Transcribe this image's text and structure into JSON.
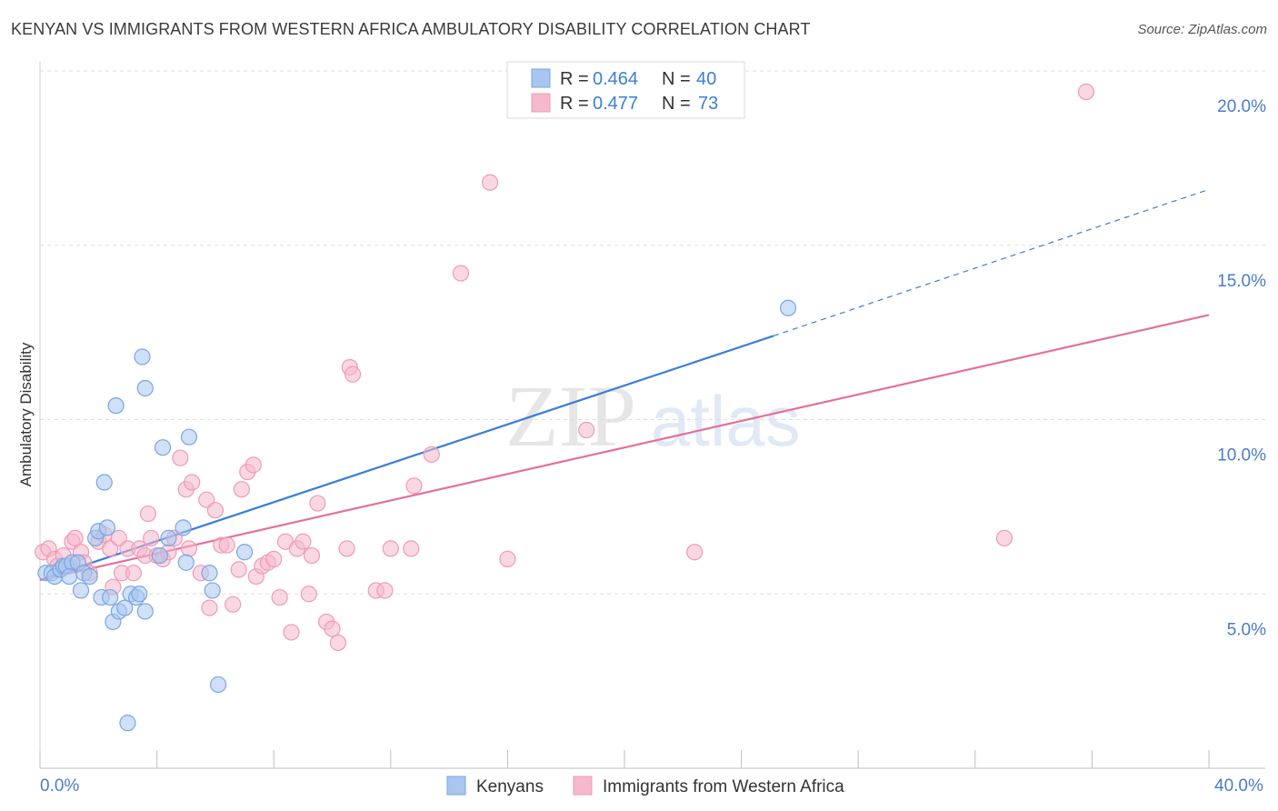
{
  "header": {
    "title": "KENYAN VS IMMIGRANTS FROM WESTERN AFRICA AMBULATORY DISABILITY CORRELATION CHART",
    "source": "Source: ZipAtlas.com"
  },
  "watermark": {
    "zip": "ZIP",
    "atlas": "atlas"
  },
  "colors": {
    "blue_fill": "#a9c6f0",
    "blue_stroke": "#7aa6e0",
    "blue_line": "#3b7fd4",
    "pink_fill": "#f6b8cc",
    "pink_stroke": "#ee9bb6",
    "pink_line": "#e4709b",
    "tick_text": "#4a7cc9",
    "grid": "#dddddd"
  },
  "chart_data": {
    "type": "scatter",
    "xlabel": "",
    "ylabel": "Ambulatory Disability",
    "xlim": [
      0,
      40
    ],
    "ylim": [
      0,
      20
    ],
    "x_ticks": [
      "0.0%",
      "40.0%"
    ],
    "y_ticks": [
      {
        "value": 5,
        "label": "5.0%"
      },
      {
        "value": 10,
        "label": "10.0%"
      },
      {
        "value": 15,
        "label": "15.0%"
      },
      {
        "value": 20,
        "label": "20.0%"
      }
    ],
    "grid": "horizontal dashed",
    "legend_stats": [
      {
        "r_label": "R =",
        "r_value": "0.464",
        "n_label": "N =",
        "n_value": "40"
      },
      {
        "r_label": "R =",
        "r_value": "0.477",
        "n_label": "N =",
        "n_value": "73"
      }
    ],
    "legend_placement": "bottom",
    "series": [
      {
        "name": "Kenyans",
        "color": "blue",
        "trend": {
          "x0": 0,
          "y0": 5.4,
          "x1": 25.1,
          "y1": 12.4,
          "dash_to_x": 40,
          "dash_to_y": 16.6
        },
        "points": [
          [
            0.2,
            5.6
          ],
          [
            0.4,
            5.6
          ],
          [
            0.5,
            5.5
          ],
          [
            0.7,
            5.7
          ],
          [
            0.8,
            5.8
          ],
          [
            0.9,
            5.8
          ],
          [
            1.1,
            5.9
          ],
          [
            1.0,
            5.5
          ],
          [
            1.3,
            5.9
          ],
          [
            1.4,
            5.1
          ],
          [
            1.5,
            5.6
          ],
          [
            1.7,
            5.5
          ],
          [
            1.9,
            6.6
          ],
          [
            2.0,
            6.8
          ],
          [
            2.1,
            4.9
          ],
          [
            2.2,
            8.2
          ],
          [
            2.3,
            6.9
          ],
          [
            2.4,
            4.9
          ],
          [
            2.5,
            4.2
          ],
          [
            2.6,
            10.4
          ],
          [
            2.7,
            4.5
          ],
          [
            2.9,
            4.6
          ],
          [
            3.0,
            1.3
          ],
          [
            3.1,
            5.0
          ],
          [
            3.3,
            4.9
          ],
          [
            3.4,
            5.0
          ],
          [
            3.5,
            11.8
          ],
          [
            3.6,
            4.5
          ],
          [
            3.6,
            10.9
          ],
          [
            4.1,
            6.1
          ],
          [
            4.2,
            9.2
          ],
          [
            4.4,
            6.6
          ],
          [
            4.9,
            6.9
          ],
          [
            5.0,
            5.9
          ],
          [
            5.1,
            9.5
          ],
          [
            5.8,
            5.6
          ],
          [
            5.9,
            5.1
          ],
          [
            6.1,
            2.4
          ],
          [
            7.0,
            6.2
          ],
          [
            25.6,
            13.2
          ]
        ]
      },
      {
        "name": "Immigrants from Western Africa",
        "color": "pink",
        "trend": {
          "x0": 0,
          "y0": 5.4,
          "x1": 40,
          "y1": 13.0
        },
        "points": [
          [
            0.1,
            6.2
          ],
          [
            0.3,
            6.3
          ],
          [
            0.5,
            6.0
          ],
          [
            0.6,
            5.8
          ],
          [
            0.8,
            6.1
          ],
          [
            1.0,
            5.8
          ],
          [
            1.1,
            6.5
          ],
          [
            1.2,
            6.6
          ],
          [
            1.4,
            6.2
          ],
          [
            1.5,
            5.9
          ],
          [
            1.7,
            5.6
          ],
          [
            2.0,
            6.5
          ],
          [
            2.2,
            6.7
          ],
          [
            2.4,
            6.3
          ],
          [
            2.5,
            5.2
          ],
          [
            2.7,
            6.6
          ],
          [
            2.8,
            5.6
          ],
          [
            3.0,
            6.3
          ],
          [
            3.2,
            5.6
          ],
          [
            3.4,
            6.3
          ],
          [
            3.6,
            6.1
          ],
          [
            3.7,
            7.3
          ],
          [
            3.8,
            6.6
          ],
          [
            4.0,
            6.1
          ],
          [
            4.2,
            6.0
          ],
          [
            4.4,
            6.2
          ],
          [
            4.6,
            6.6
          ],
          [
            4.8,
            8.9
          ],
          [
            5.0,
            8.0
          ],
          [
            5.1,
            6.3
          ],
          [
            5.2,
            8.2
          ],
          [
            5.5,
            5.6
          ],
          [
            5.7,
            7.7
          ],
          [
            5.8,
            4.6
          ],
          [
            6.0,
            7.4
          ],
          [
            6.2,
            6.4
          ],
          [
            6.4,
            6.4
          ],
          [
            6.6,
            4.7
          ],
          [
            6.8,
            5.7
          ],
          [
            6.9,
            8.0
          ],
          [
            7.1,
            8.5
          ],
          [
            7.3,
            8.7
          ],
          [
            7.4,
            5.5
          ],
          [
            7.6,
            5.8
          ],
          [
            7.8,
            5.9
          ],
          [
            8.0,
            6.0
          ],
          [
            8.2,
            4.9
          ],
          [
            8.4,
            6.5
          ],
          [
            8.6,
            3.9
          ],
          [
            8.8,
            6.3
          ],
          [
            9.0,
            6.5
          ],
          [
            9.2,
            5.0
          ],
          [
            9.3,
            6.1
          ],
          [
            9.5,
            7.6
          ],
          [
            9.8,
            4.2
          ],
          [
            10.0,
            4.0
          ],
          [
            10.2,
            3.6
          ],
          [
            10.5,
            6.3
          ],
          [
            10.6,
            11.5
          ],
          [
            10.7,
            11.3
          ],
          [
            11.5,
            5.1
          ],
          [
            11.8,
            5.1
          ],
          [
            12.0,
            6.3
          ],
          [
            12.7,
            6.3
          ],
          [
            12.8,
            8.1
          ],
          [
            13.4,
            9.0
          ],
          [
            14.4,
            14.2
          ],
          [
            15.4,
            16.8
          ],
          [
            16.0,
            6.0
          ],
          [
            18.7,
            9.7
          ],
          [
            22.4,
            6.2
          ],
          [
            33.0,
            6.6
          ],
          [
            35.8,
            19.4
          ]
        ]
      }
    ]
  },
  "legend_bottom": [
    {
      "label": "Kenyans",
      "color": "blue"
    },
    {
      "label": "Immigrants from Western Africa",
      "color": "pink"
    }
  ]
}
